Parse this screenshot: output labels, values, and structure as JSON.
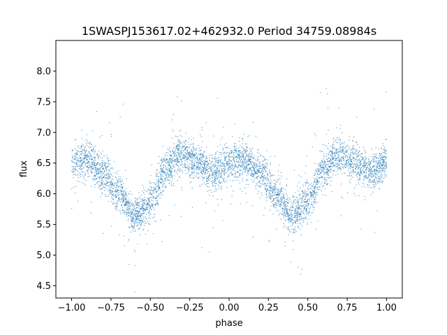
{
  "chart_data": {
    "type": "scatter",
    "title": "1SWASPJ153617.02+462932.0 Period 34759.08984s",
    "xlabel": "phase",
    "ylabel": "flux",
    "xlim": [
      -1.1,
      1.1
    ],
    "ylim": [
      4.3,
      8.5
    ],
    "x_ticks": [
      -1.0,
      -0.75,
      -0.5,
      -0.25,
      0.0,
      0.25,
      0.5,
      0.75,
      1.0
    ],
    "x_tick_labels": [
      "−1.00",
      "−0.75",
      "−0.50",
      "−0.25",
      "0.00",
      "0.25",
      "0.50",
      "0.75",
      "1.00"
    ],
    "y_ticks": [
      4.5,
      5.0,
      5.5,
      6.0,
      6.5,
      7.0,
      7.5,
      8.0
    ],
    "y_tick_labels": [
      "4.5",
      "5.0",
      "5.5",
      "6.0",
      "6.5",
      "7.0",
      "7.5",
      "8.0"
    ],
    "grid": false,
    "point_color": "#1f77b4",
    "series": [
      {
        "x": [
          -1.0,
          -0.9,
          -0.8,
          -0.7,
          -0.6,
          -0.5,
          -0.4,
          -0.3,
          -0.2,
          -0.1,
          0.0,
          0.1,
          0.2,
          0.3,
          0.4,
          0.5,
          0.6,
          0.7,
          0.8,
          0.9,
          1.0
        ],
        "values": [
          6.5,
          6.55,
          6.35,
          6.0,
          5.65,
          5.85,
          6.4,
          6.65,
          6.5,
          6.35,
          6.5,
          6.55,
          6.35,
          6.0,
          5.65,
          5.85,
          6.4,
          6.65,
          6.5,
          6.35,
          6.5
        ]
      }
    ]
  }
}
